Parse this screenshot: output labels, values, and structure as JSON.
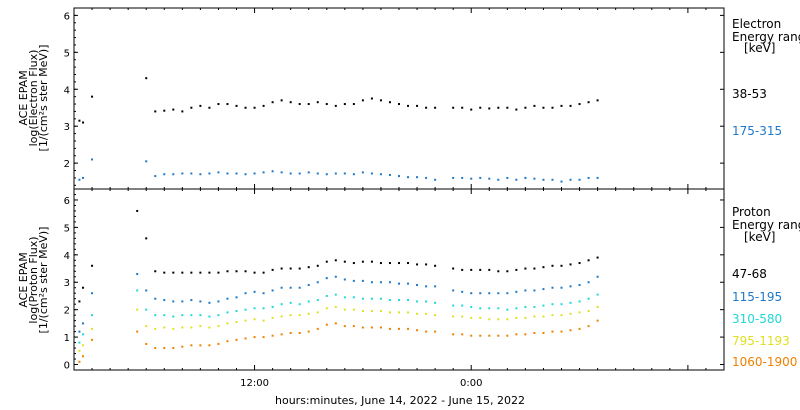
{
  "chart_data": [
    {
      "type": "scatter",
      "ylabel_lines": [
        "ACE EPAM",
        "log(Electron Flux)",
        "[1/(cm²s ster MeV)]"
      ],
      "ylim": [
        1.3,
        6.2
      ],
      "yticks": [
        2,
        3,
        4,
        5,
        6
      ],
      "legend_title": [
        "Electron",
        "Energy ranges",
        "[keV]"
      ],
      "series": [
        {
          "name": "38-53",
          "color": "#000000",
          "x": [
            0.3,
            0.5,
            1,
            1.5,
            2,
            2.5,
            3,
            3.5,
            4,
            4.5,
            5,
            5.5,
            6,
            6.5,
            7,
            7.5,
            8,
            8.5,
            9,
            9.5,
            10,
            10.5,
            11,
            11.5,
            12,
            12.5,
            13,
            13.5,
            14,
            14.5,
            15,
            15.5,
            16,
            16.5,
            17,
            17.5,
            18,
            18.5,
            19,
            19.5,
            20,
            20.5,
            21,
            21.5,
            22,
            22.5,
            23,
            23.5,
            24,
            24.5,
            25,
            25.5,
            26,
            26.5,
            27,
            27.5,
            28,
            28.5,
            29
          ],
          "y": [
            3.15,
            3.1,
            3.8,
            null,
            null,
            null,
            null,
            null,
            4.3,
            3.4,
            3.42,
            3.45,
            3.4,
            3.5,
            3.55,
            3.5,
            3.6,
            3.6,
            3.55,
            3.5,
            3.5,
            3.55,
            3.65,
            3.7,
            3.65,
            3.6,
            3.6,
            3.65,
            3.6,
            3.55,
            3.6,
            3.6,
            3.7,
            3.75,
            3.7,
            3.65,
            3.6,
            3.55,
            3.55,
            3.5,
            3.5,
            null,
            3.5,
            3.5,
            3.45,
            3.5,
            3.48,
            3.5,
            3.5,
            3.45,
            3.5,
            3.55,
            3.5,
            3.5,
            3.55,
            3.55,
            3.6,
            3.65,
            3.7
          ]
        },
        {
          "name": "175-315",
          "color": "#1f78c8",
          "x": [
            0.3,
            0.5,
            1,
            1.5,
            2,
            2.5,
            3,
            3.5,
            4,
            4.5,
            5,
            5.5,
            6,
            6.5,
            7,
            7.5,
            8,
            8.5,
            9,
            9.5,
            10,
            10.5,
            11,
            11.5,
            12,
            12.5,
            13,
            13.5,
            14,
            14.5,
            15,
            15.5,
            16,
            16.5,
            17,
            17.5,
            18,
            18.5,
            19,
            19.5,
            20,
            20.5,
            21,
            21.5,
            22,
            22.5,
            23,
            23.5,
            24,
            24.5,
            25,
            25.5,
            26,
            26.5,
            27,
            27.5,
            28,
            28.5,
            29
          ],
          "y": [
            1.55,
            1.6,
            2.1,
            null,
            null,
            null,
            null,
            null,
            2.05,
            1.65,
            1.7,
            1.7,
            1.72,
            1.72,
            1.7,
            1.72,
            1.75,
            1.72,
            1.72,
            1.7,
            1.72,
            1.75,
            1.78,
            1.75,
            1.72,
            1.72,
            1.75,
            1.72,
            1.7,
            1.72,
            1.72,
            1.7,
            1.75,
            1.72,
            1.7,
            1.68,
            1.65,
            1.62,
            1.62,
            1.6,
            1.55,
            null,
            1.6,
            1.6,
            1.58,
            1.6,
            1.58,
            1.55,
            1.6,
            1.55,
            1.6,
            1.58,
            1.55,
            1.55,
            1.5,
            1.55,
            1.55,
            1.6,
            1.6
          ]
        }
      ]
    },
    {
      "type": "scatter",
      "ylabel_lines": [
        "ACE EPAM",
        "log(Proton Flux)",
        "[1/(cm²s ster MeV)]"
      ],
      "ylim": [
        -0.2,
        6.4
      ],
      "yticks": [
        0,
        1,
        2,
        3,
        4,
        5,
        6
      ],
      "legend_title": [
        "Proton",
        "Energy ranges",
        "[keV]"
      ],
      "series": [
        {
          "name": "47-68",
          "color": "#000000",
          "x": [
            0.3,
            0.5,
            1,
            3.5,
            4,
            4.5,
            5,
            5.5,
            6,
            6.5,
            7,
            7.5,
            8,
            8.5,
            9,
            9.5,
            10,
            10.5,
            11,
            11.5,
            12,
            12.5,
            13,
            13.5,
            14,
            14.5,
            15,
            15.5,
            16,
            16.5,
            17,
            17.5,
            18,
            18.5,
            19,
            19.5,
            20,
            20.5,
            21,
            21.5,
            22,
            22.5,
            23,
            23.5,
            24,
            24.5,
            25,
            25.5,
            26,
            26.5,
            27,
            27.5,
            28,
            28.5,
            29
          ],
          "y": [
            2.3,
            2.8,
            3.6,
            5.6,
            4.6,
            3.4,
            3.35,
            3.35,
            3.35,
            3.35,
            3.35,
            3.35,
            3.35,
            3.4,
            3.4,
            3.4,
            3.35,
            3.35,
            3.45,
            3.5,
            3.5,
            3.5,
            3.55,
            3.6,
            3.75,
            3.8,
            3.75,
            3.7,
            3.75,
            3.75,
            3.7,
            3.7,
            3.7,
            3.7,
            3.65,
            3.65,
            3.6,
            null,
            3.5,
            3.45,
            3.45,
            3.45,
            3.45,
            3.4,
            3.4,
            3.45,
            3.5,
            3.5,
            3.55,
            3.6,
            3.6,
            3.65,
            3.7,
            3.8,
            3.9
          ]
        },
        {
          "name": "115-195",
          "color": "#1f78c8",
          "x": [
            0.3,
            0.5,
            1,
            3.5,
            4,
            4.5,
            5,
            5.5,
            6,
            6.5,
            7,
            7.5,
            8,
            8.5,
            9,
            9.5,
            10,
            10.5,
            11,
            11.5,
            12,
            12.5,
            13,
            13.5,
            14,
            14.5,
            15,
            15.5,
            16,
            16.5,
            17,
            17.5,
            18,
            18.5,
            19,
            19.5,
            20,
            20.5,
            21,
            21.5,
            22,
            22.5,
            23,
            23.5,
            24,
            24.5,
            25,
            25.5,
            26,
            26.5,
            27,
            27.5,
            28,
            28.5,
            29
          ],
          "y": [
            1.2,
            1.5,
            2.6,
            3.3,
            2.7,
            2.4,
            2.35,
            2.3,
            2.3,
            2.35,
            2.3,
            2.25,
            2.3,
            2.4,
            2.45,
            2.6,
            2.65,
            2.6,
            2.7,
            2.8,
            2.8,
            2.8,
            2.9,
            3.0,
            3.15,
            3.2,
            3.1,
            3.05,
            3.05,
            3.0,
            3.0,
            3.0,
            2.95,
            2.95,
            2.9,
            2.85,
            2.85,
            null,
            2.7,
            2.65,
            2.6,
            2.6,
            2.6,
            2.6,
            2.6,
            2.65,
            2.7,
            2.7,
            2.75,
            2.8,
            2.8,
            2.85,
            2.9,
            3.0,
            3.2
          ]
        },
        {
          "name": "310-580",
          "color": "#20d8d8",
          "x": [
            0.3,
            0.5,
            1,
            3.5,
            4,
            4.5,
            5,
            5.5,
            6,
            6.5,
            7,
            7.5,
            8,
            8.5,
            9,
            9.5,
            10,
            10.5,
            11,
            11.5,
            12,
            12.5,
            13,
            13.5,
            14,
            14.5,
            15,
            15.5,
            16,
            16.5,
            17,
            17.5,
            18,
            18.5,
            19,
            19.5,
            20,
            20.5,
            21,
            21.5,
            22,
            22.5,
            23,
            23.5,
            24,
            24.5,
            25,
            25.5,
            26,
            26.5,
            27,
            27.5,
            28,
            28.5,
            29
          ],
          "y": [
            0.8,
            1.1,
            1.8,
            2.7,
            2.0,
            1.8,
            1.8,
            1.75,
            1.8,
            1.8,
            1.8,
            1.75,
            1.8,
            1.9,
            1.95,
            2.0,
            2.05,
            2.05,
            2.1,
            2.2,
            2.25,
            2.2,
            2.3,
            2.35,
            2.5,
            2.55,
            2.45,
            2.45,
            2.4,
            2.4,
            2.4,
            2.35,
            2.35,
            2.35,
            2.3,
            2.3,
            2.25,
            null,
            2.15,
            2.15,
            2.1,
            2.05,
            2.05,
            2.05,
            2.0,
            2.05,
            2.1,
            2.1,
            2.15,
            2.2,
            2.2,
            2.25,
            2.3,
            2.4,
            2.55
          ]
        },
        {
          "name": "795-1193",
          "color": "#e0e020",
          "x": [
            0.3,
            0.5,
            1,
            3.5,
            4,
            4.5,
            5,
            5.5,
            6,
            6.5,
            7,
            7.5,
            8,
            8.5,
            9,
            9.5,
            10,
            10.5,
            11,
            11.5,
            12,
            12.5,
            13,
            13.5,
            14,
            14.5,
            15,
            15.5,
            16,
            16.5,
            17,
            17.5,
            18,
            18.5,
            19,
            19.5,
            20,
            20.5,
            21,
            21.5,
            22,
            22.5,
            23,
            23.5,
            24,
            24.5,
            25,
            25.5,
            26,
            26.5,
            27,
            27.5,
            28,
            28.5,
            29
          ],
          "y": [
            0.5,
            0.7,
            1.3,
            2.0,
            1.4,
            1.3,
            1.35,
            1.3,
            1.35,
            1.35,
            1.4,
            1.35,
            1.4,
            1.5,
            1.55,
            1.6,
            1.65,
            1.6,
            1.7,
            1.75,
            1.8,
            1.8,
            1.85,
            1.9,
            2.05,
            2.1,
            2.0,
            2.0,
            1.95,
            1.95,
            1.95,
            1.9,
            1.9,
            1.9,
            1.85,
            1.85,
            1.8,
            null,
            1.75,
            1.75,
            1.7,
            1.7,
            1.65,
            1.65,
            1.65,
            1.7,
            1.7,
            1.75,
            1.75,
            1.8,
            1.8,
            1.85,
            1.9,
            1.95,
            2.1
          ]
        },
        {
          "name": "1060-1900",
          "color": "#f08000",
          "x": [
            0.3,
            0.5,
            1,
            3.5,
            4,
            4.5,
            5,
            5.5,
            6,
            6.5,
            7,
            7.5,
            8,
            8.5,
            9,
            9.5,
            10,
            10.5,
            11,
            11.5,
            12,
            12.5,
            13,
            13.5,
            14,
            14.5,
            15,
            15.5,
            16,
            16.5,
            17,
            17.5,
            18,
            18.5,
            19,
            19.5,
            20,
            20.5,
            21,
            21.5,
            22,
            22.5,
            23,
            23.5,
            24,
            24.5,
            25,
            25.5,
            26,
            26.5,
            27,
            27.5,
            28,
            28.5,
            29
          ],
          "y": [
            0.1,
            0.3,
            0.9,
            1.2,
            0.75,
            0.6,
            0.6,
            0.6,
            0.65,
            0.7,
            0.7,
            0.7,
            0.75,
            0.85,
            0.9,
            0.95,
            1.0,
            1.0,
            1.05,
            1.1,
            1.15,
            1.15,
            1.2,
            1.3,
            1.45,
            1.5,
            1.4,
            1.4,
            1.35,
            1.35,
            1.35,
            1.3,
            1.3,
            1.3,
            1.25,
            1.2,
            1.2,
            null,
            1.1,
            1.1,
            1.05,
            1.05,
            1.05,
            1.05,
            1.05,
            1.1,
            1.1,
            1.15,
            1.15,
            1.2,
            1.2,
            1.25,
            1.3,
            1.4,
            1.6
          ]
        }
      ]
    }
  ],
  "x_axis": {
    "range_hours": [
      0,
      36
    ],
    "ticks": [
      {
        "x": 10,
        "label": "12:00"
      },
      {
        "x": 22,
        "label": "0:00"
      }
    ],
    "xlabel": "hours:minutes, June 14, 2022 - June 15, 2022"
  }
}
